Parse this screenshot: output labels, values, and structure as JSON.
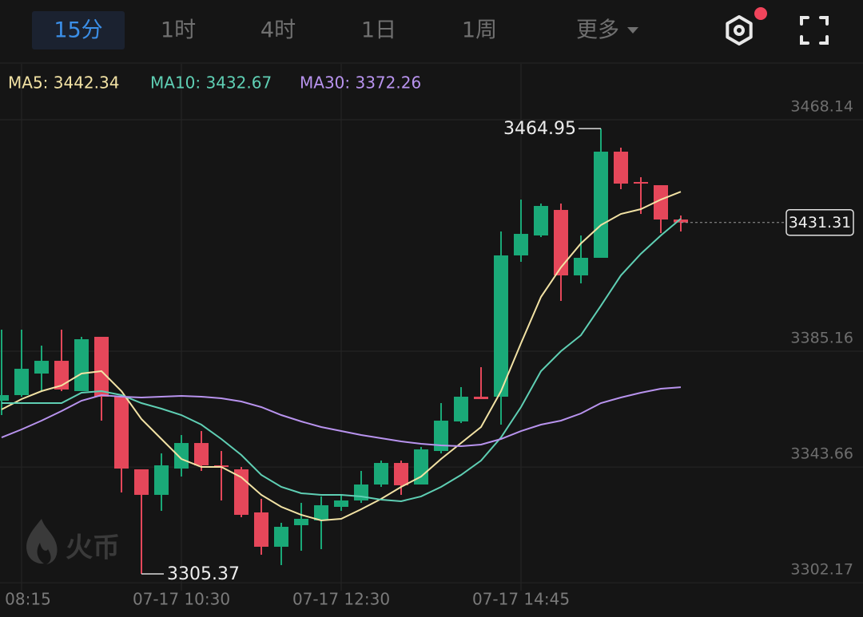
{
  "tabs": [
    "15分",
    "1时",
    "4时",
    "1日",
    "1周",
    "更多"
  ],
  "active_tab": 0,
  "watermark": "火币",
  "chart_data": {
    "type": "candlestick",
    "categories": [
      null,
      "08:15",
      null,
      null,
      null,
      null,
      null,
      null,
      null,
      "07-17 10:30",
      null,
      null,
      null,
      null,
      null,
      null,
      null,
      "07-17 12:30",
      null,
      null,
      null,
      null,
      null,
      null,
      null,
      null,
      "07-17 14:45",
      null,
      null,
      null,
      null,
      null,
      null,
      null,
      null
    ],
    "open": [
      3367.44,
      3369.44,
      3377.17,
      3381.74,
      3370.87,
      3390.33,
      3368.87,
      3342.84,
      3333.69,
      3343.12,
      3352.27,
      3344.26,
      3342.84,
      3327.39,
      3315.09,
      3322.81,
      3324.53,
      3329.39,
      3331.68,
      3337.4,
      3345.12,
      3337.4,
      3349.41,
      3360.0,
      3368.87,
      3368.87,
      3419.51,
      3426.66,
      3435.81,
      3412.35,
      3418.65,
      3456.7,
      3445.83,
      3444.68,
      3432.38
    ],
    "high": [
      3392.9,
      3392.9,
      3387.18,
      3392.9,
      3390.33,
      3390.33,
      3368.87,
      3342.84,
      3348.55,
      3355.13,
      3356.56,
      3349.41,
      3343.69,
      3332.26,
      3323.67,
      3330.82,
      3333.12,
      3333.69,
      3342.27,
      3345.98,
      3345.98,
      3350.84,
      3366.58,
      3372.3,
      3379.45,
      3428.09,
      3439.53,
      3438.1,
      3438.1,
      3426.66,
      3464.95,
      3458.13,
      3447.54,
      3444.68,
      3433.81
    ],
    "low": [
      3362.29,
      3368.87,
      3370.87,
      3370.87,
      3370.87,
      3360.29,
      3334.55,
      3305.37,
      3327.96,
      3340.26,
      3342.27,
      3331.68,
      3325.67,
      3312.23,
      3308.51,
      3313.66,
      3314.23,
      3327.96,
      3330.82,
      3336.55,
      3333.69,
      3337.4,
      3348.55,
      3359.43,
      3368.01,
      3358.85,
      3417.22,
      3426.09,
      3403.2,
      3409.49,
      3418.65,
      3443.25,
      3434.38,
      3427.52,
      3428.09
    ],
    "close": [
      3369.44,
      3378.88,
      3381.74,
      3371.45,
      3389.47,
      3368.87,
      3343.12,
      3333.69,
      3344.26,
      3352.27,
      3344.26,
      3343.69,
      3326.53,
      3315.09,
      3322.24,
      3325.1,
      3329.96,
      3331.68,
      3337.4,
      3345.12,
      3337.12,
      3349.98,
      3360.29,
      3368.87,
      3368.01,
      3419.51,
      3427.23,
      3437.24,
      3412.35,
      3418.65,
      3456.7,
      3445.25,
      3445.25,
      3432.38,
      3431.31
    ],
    "up_color": "#1aa978",
    "down_color": "#e5475a",
    "series": [
      {
        "name": "MA5: 3442.34",
        "color": "#f2e2a4",
        "values": [
          3364.29,
          3368.01,
          3370.87,
          3372.88,
          3377.17,
          3378.03,
          3370.87,
          3360.86,
          3353.71,
          3346.55,
          3343.69,
          3343.69,
          3339.98,
          3333.69,
          3329.39,
          3326.53,
          3324.53,
          3325.1,
          3328.53,
          3332.26,
          3336.55,
          3340.26,
          3346.55,
          3352.27,
          3358.0,
          3370.87,
          3388.04,
          3404.63,
          3415.22,
          3423.8,
          3430.38,
          3434.38,
          3436.1,
          3439.53,
          3442.34
        ]
      },
      {
        "name": "MA10: 3432.67",
        "color": "#5fcfb4",
        "values": [
          3366.58,
          3366.58,
          3366.58,
          3366.58,
          3370.3,
          3370.87,
          3369.44,
          3366.58,
          3364.58,
          3362.29,
          3358.85,
          3353.71,
          3347.99,
          3340.83,
          3336.55,
          3334.26,
          3333.69,
          3333.69,
          3333.12,
          3331.97,
          3331.4,
          3333.12,
          3336.55,
          3340.83,
          3345.98,
          3354.27,
          3365.15,
          3378.03,
          3385.18,
          3390.9,
          3401.48,
          3412.35,
          3420.08,
          3426.66,
          3432.67
        ]
      },
      {
        "name": "MA30: 3372.26",
        "color": "#b893ee",
        "values": [
          3354.27,
          3357.14,
          3360.29,
          3363.72,
          3367.44,
          3369.44,
          3368.87,
          3368.58,
          3368.87,
          3369.16,
          3368.87,
          3368.3,
          3367.15,
          3365.15,
          3362.29,
          3360.0,
          3358.0,
          3356.56,
          3355.13,
          3353.99,
          3352.85,
          3351.99,
          3351.42,
          3351.13,
          3351.7,
          3353.71,
          3356.56,
          3358.85,
          3360.29,
          3362.86,
          3366.58,
          3368.58,
          3370.3,
          3371.73,
          3372.26
        ]
      }
    ],
    "ylim": [
      3299.35,
      3488.17
    ],
    "yticks": [
      3468.14,
      3385.16,
      3343.66,
      3302.17
    ],
    "grid": true,
    "max_label": 3464.95,
    "min_label": 3305.37,
    "last_price": 3431.31
  }
}
